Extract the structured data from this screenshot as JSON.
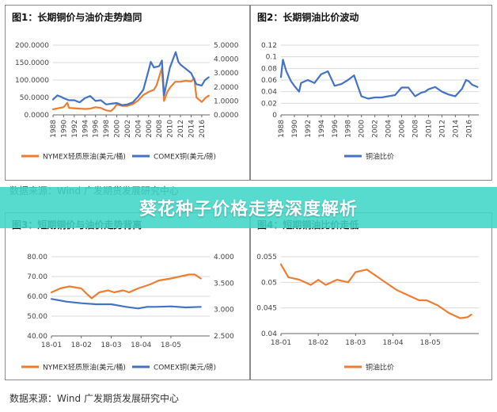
{
  "source_text": "数据来源：Wind 广发期货发展研究中心",
  "banner_title": "葵花种子价格走势深度解析",
  "colors": {
    "orange": "#ED7D31",
    "blue": "#4472C4",
    "grid": "#d9d9d9",
    "axis": "#666666",
    "banner": "#40d6c8"
  },
  "chart_data": [
    {
      "type": "line",
      "title": "图1：长期铜价与油价走势趋同",
      "x_ticks": [
        "1988",
        "1990",
        "1992",
        "1994",
        "1996",
        "1998",
        "2000",
        "2002",
        "2004",
        "2006",
        "2008",
        "2010",
        "2012",
        "2014",
        "2016"
      ],
      "x_range": [
        1988,
        2017.5
      ],
      "y_left": {
        "range": [
          0,
          200
        ],
        "ticks": [
          "0.0000",
          "50.0000",
          "100.0000",
          "150.0000",
          "200.0000"
        ]
      },
      "y_right": {
        "range": [
          0,
          5
        ],
        "ticks": [
          "0.0000",
          "1.0000",
          "2.0000",
          "3.0000",
          "4.0000",
          "5.0000"
        ]
      },
      "series": [
        {
          "name": "NYMEX轻质原油(美元/桶)",
          "axis": "left",
          "color": "#ED7D31",
          "x": [
            1988,
            1989,
            1990,
            1990.7,
            1991,
            1992,
            1993,
            1994,
            1995,
            1996,
            1997,
            1998,
            1998.9,
            1999.5,
            2000,
            2001,
            2002,
            2003,
            2004,
            2005,
            2006,
            2007,
            2007.5,
            2008.5,
            2008.9,
            2009.5,
            2010,
            2011,
            2012,
            2013,
            2014,
            2014.6,
            2015,
            2016,
            2016.8,
            2017.3
          ],
          "y": [
            16,
            19,
            22,
            35,
            20,
            19,
            18,
            17,
            18,
            22,
            20,
            13,
            11,
            19,
            30,
            26,
            26,
            31,
            41,
            57,
            66,
            72,
            85,
            135,
            40,
            65,
            78,
            95,
            95,
            98,
            96,
            105,
            50,
            37,
            50,
            55
          ]
        },
        {
          "name": "COMEX铜(美元/磅)",
          "axis": "right",
          "color": "#4472C4",
          "x": [
            1988,
            1988.8,
            1989.5,
            1990,
            1991,
            1992,
            1993,
            1994,
            1995,
            1996,
            1997,
            1998,
            1999,
            2000,
            2001,
            2002,
            2003,
            2004,
            2005,
            2006,
            2006.4,
            2007,
            2008,
            2008.5,
            2008.9,
            2009.5,
            2010,
            2011.1,
            2011.6,
            2012,
            2013,
            2014,
            2015,
            2016,
            2016.6,
            2017.3
          ],
          "y": [
            1.1,
            1.4,
            1.3,
            1.2,
            1.05,
            1.05,
            0.9,
            1.2,
            1.35,
            1.0,
            1.05,
            0.75,
            0.8,
            0.85,
            0.7,
            0.75,
            0.9,
            1.3,
            1.8,
            3.2,
            3.8,
            3.4,
            3.5,
            3.9,
            1.4,
            2.5,
            3.4,
            4.5,
            3.8,
            3.6,
            3.3,
            3.0,
            2.2,
            2.1,
            2.5,
            2.7
          ]
        }
      ]
    },
    {
      "type": "line",
      "title": "图2：长期铜油比价波动",
      "x_ticks": [
        "1988",
        "1990",
        "1992",
        "1994",
        "1996",
        "1998",
        "2000",
        "2002",
        "2004",
        "2006",
        "2008",
        "2010",
        "2012",
        "2014",
        "2016"
      ],
      "x_range": [
        1988,
        2017.5
      ],
      "y_left": {
        "range": [
          0,
          0.12
        ],
        "ticks": [
          "0",
          "0.02",
          "0.04",
          "0.06",
          "0.08",
          "0.1",
          "0.12"
        ]
      },
      "series": [
        {
          "name": "铜油比价",
          "axis": "left",
          "color": "#4472C4",
          "x": [
            1988,
            1988.3,
            1988.8,
            1989.5,
            1990,
            1990.7,
            1991,
            1992,
            1993,
            1994,
            1995,
            1996,
            1997,
            1998,
            1998.9,
            1999.5,
            2000,
            2001,
            2002,
            2003,
            2004,
            2005,
            2006,
            2007,
            2008,
            2008.9,
            2009.5,
            2010,
            2011,
            2012,
            2013,
            2014,
            2015,
            2015.6,
            2016,
            2016.5,
            2017.3
          ],
          "y": [
            0.065,
            0.095,
            0.075,
            0.058,
            0.05,
            0.04,
            0.055,
            0.06,
            0.055,
            0.07,
            0.075,
            0.05,
            0.053,
            0.06,
            0.068,
            0.048,
            0.032,
            0.028,
            0.03,
            0.03,
            0.032,
            0.034,
            0.047,
            0.047,
            0.032,
            0.038,
            0.04,
            0.044,
            0.048,
            0.04,
            0.035,
            0.032,
            0.045,
            0.06,
            0.058,
            0.052,
            0.048
          ]
        }
      ]
    },
    {
      "type": "line",
      "title": "图3：短期铜价与油价走势背离",
      "x_ticks": [
        "18-01",
        "18-02",
        "18-03",
        "18-04",
        "18-05"
      ],
      "x_range": [
        0,
        5.3
      ],
      "y_left": {
        "range": [
          40,
          80
        ],
        "ticks": [
          "40.00",
          "50.00",
          "60.00",
          "70.00",
          "80.00"
        ]
      },
      "y_right": {
        "range": [
          2.5,
          4
        ],
        "ticks": [
          "2.500",
          "3.000",
          "3.500",
          "4.000"
        ]
      },
      "series": [
        {
          "name": "NYMEX轻质原油(美元/桶)",
          "axis": "left",
          "color": "#ED7D31",
          "x": [
            0,
            0.3,
            0.6,
            1.0,
            1.2,
            1.35,
            1.6,
            1.9,
            2.1,
            2.4,
            2.6,
            2.9,
            3.1,
            3.3,
            3.6,
            4.0,
            4.3,
            4.6,
            4.8,
            5.0
          ],
          "y": [
            62,
            64,
            65,
            64,
            61,
            59,
            62,
            63,
            62,
            63,
            62,
            64,
            65,
            66,
            68,
            69,
            70,
            71,
            71,
            69
          ]
        },
        {
          "name": "COMEX铜(美元/磅)",
          "axis": "right",
          "color": "#4472C4",
          "x": [
            0,
            0.5,
            1.0,
            1.5,
            2.0,
            2.5,
            2.9,
            3.2,
            3.5,
            4.0,
            4.5,
            5.0
          ],
          "y": [
            3.2,
            3.15,
            3.12,
            3.1,
            3.1,
            3.05,
            3.02,
            3.05,
            3.05,
            3.06,
            3.04,
            3.05
          ]
        }
      ]
    },
    {
      "type": "line",
      "title": "图4：短期铜油比价走低",
      "x_ticks": [
        "18-01",
        "18-02",
        "18-03",
        "18-04",
        "18-05"
      ],
      "x_range": [
        0,
        5.3
      ],
      "y_left": {
        "range": [
          0.04,
          0.055
        ],
        "ticks": [
          "0.04",
          "0.045",
          "0.05",
          "0.055"
        ]
      },
      "series": [
        {
          "name": "铜油比价",
          "axis": "left",
          "color": "#ED7D31",
          "x": [
            0,
            0.2,
            0.5,
            0.8,
            1.0,
            1.2,
            1.5,
            1.8,
            2.0,
            2.3,
            2.6,
            2.9,
            3.1,
            3.4,
            3.7,
            3.9,
            4.2,
            4.5,
            4.8,
            5.0,
            5.1
          ],
          "y": [
            0.0535,
            0.051,
            0.0505,
            0.0495,
            0.0505,
            0.0495,
            0.0505,
            0.05,
            0.052,
            0.0525,
            0.051,
            0.0495,
            0.0485,
            0.0475,
            0.0465,
            0.0465,
            0.0455,
            0.044,
            0.043,
            0.0432,
            0.0437
          ]
        }
      ]
    }
  ]
}
